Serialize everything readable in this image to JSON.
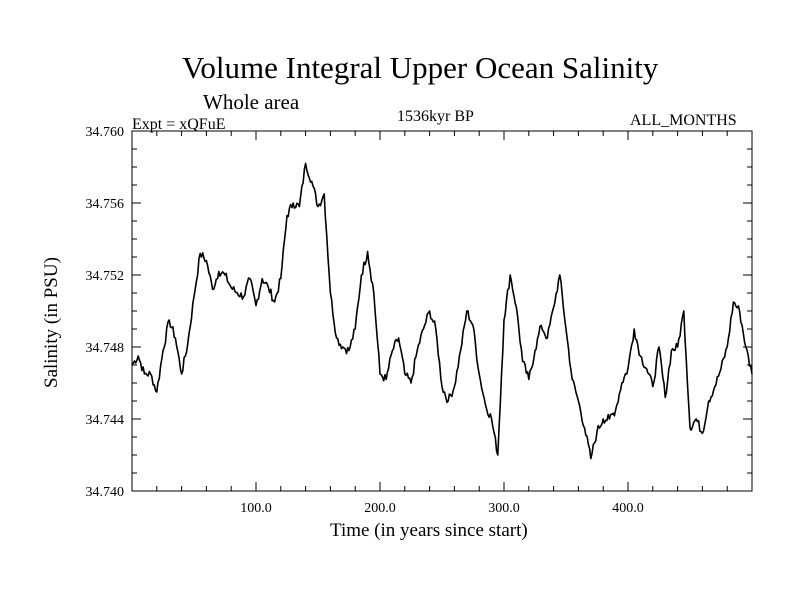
{
  "chart_data": {
    "type": "line",
    "title": "Volume Integral Upper Ocean Salinity",
    "subtitle": "Whole area",
    "experiment": "Expt = xQFuE",
    "period": "1536kyr BP",
    "months": "ALL_MONTHS",
    "xlabel": "Time (in years since start)",
    "ylabel": "Salinity (in PSU)",
    "xlim": [
      0,
      500
    ],
    "ylim": [
      34.74,
      34.76
    ],
    "xticks": [
      100,
      200,
      300,
      400
    ],
    "xtick_labels": [
      "100.0",
      "200.0",
      "300.0",
      "400.0"
    ],
    "yticks": [
      34.74,
      34.744,
      34.748,
      34.752,
      34.756,
      34.76
    ],
    "ytick_labels": [
      "34.740",
      "34.744",
      "34.748",
      "34.752",
      "34.756",
      "34.760"
    ],
    "series": [
      {
        "name": "Salinity",
        "color": "#000000",
        "x": [
          0,
          5,
          10,
          15,
          20,
          25,
          30,
          35,
          40,
          45,
          50,
          55,
          60,
          65,
          70,
          75,
          80,
          85,
          90,
          95,
          100,
          105,
          110,
          115,
          120,
          125,
          130,
          135,
          140,
          145,
          150,
          155,
          160,
          165,
          170,
          175,
          180,
          185,
          190,
          195,
          200,
          205,
          210,
          215,
          220,
          225,
          230,
          235,
          240,
          245,
          250,
          255,
          260,
          265,
          270,
          275,
          280,
          285,
          290,
          295,
          300,
          305,
          310,
          315,
          320,
          325,
          330,
          335,
          340,
          345,
          350,
          355,
          360,
          365,
          370,
          375,
          380,
          385,
          390,
          395,
          400,
          405,
          410,
          415,
          420,
          425,
          430,
          435,
          440,
          445,
          450,
          455,
          460,
          465,
          470,
          475,
          480,
          485,
          490,
          495,
          500
        ],
        "values": [
          34.747,
          34.7475,
          34.7465,
          34.7465,
          34.7455,
          34.7478,
          34.7495,
          34.7485,
          34.7465,
          34.7482,
          34.7508,
          34.7532,
          34.7528,
          34.7512,
          34.7522,
          34.752,
          34.7513,
          34.751,
          34.7508,
          34.7518,
          34.7503,
          34.7518,
          34.7513,
          34.7505,
          34.7518,
          34.7553,
          34.756,
          34.7558,
          34.7582,
          34.7572,
          34.7558,
          34.7565,
          34.751,
          34.7485,
          34.748,
          34.7478,
          34.749,
          34.752,
          34.7533,
          34.751,
          34.7465,
          34.7462,
          34.7478,
          34.7485,
          34.7465,
          34.746,
          34.7478,
          34.749,
          34.75,
          34.749,
          34.7458,
          34.745,
          34.7458,
          34.7478,
          34.75,
          34.7492,
          34.7465,
          34.7448,
          34.744,
          34.742,
          34.7495,
          34.752,
          34.7502,
          34.7472,
          34.7462,
          34.7478,
          34.7492,
          34.7485,
          34.7502,
          34.752,
          34.749,
          34.7462,
          34.745,
          34.7435,
          34.7418,
          34.7433,
          34.744,
          34.744,
          34.7445,
          34.746,
          34.7468,
          34.749,
          34.7475,
          34.7468,
          34.7458,
          34.748,
          34.7452,
          34.7478,
          34.748,
          34.75,
          34.7435,
          34.744,
          34.7432,
          34.745,
          34.7458,
          34.7468,
          34.748,
          34.7505,
          34.75,
          34.748,
          34.7465
        ]
      }
    ]
  }
}
